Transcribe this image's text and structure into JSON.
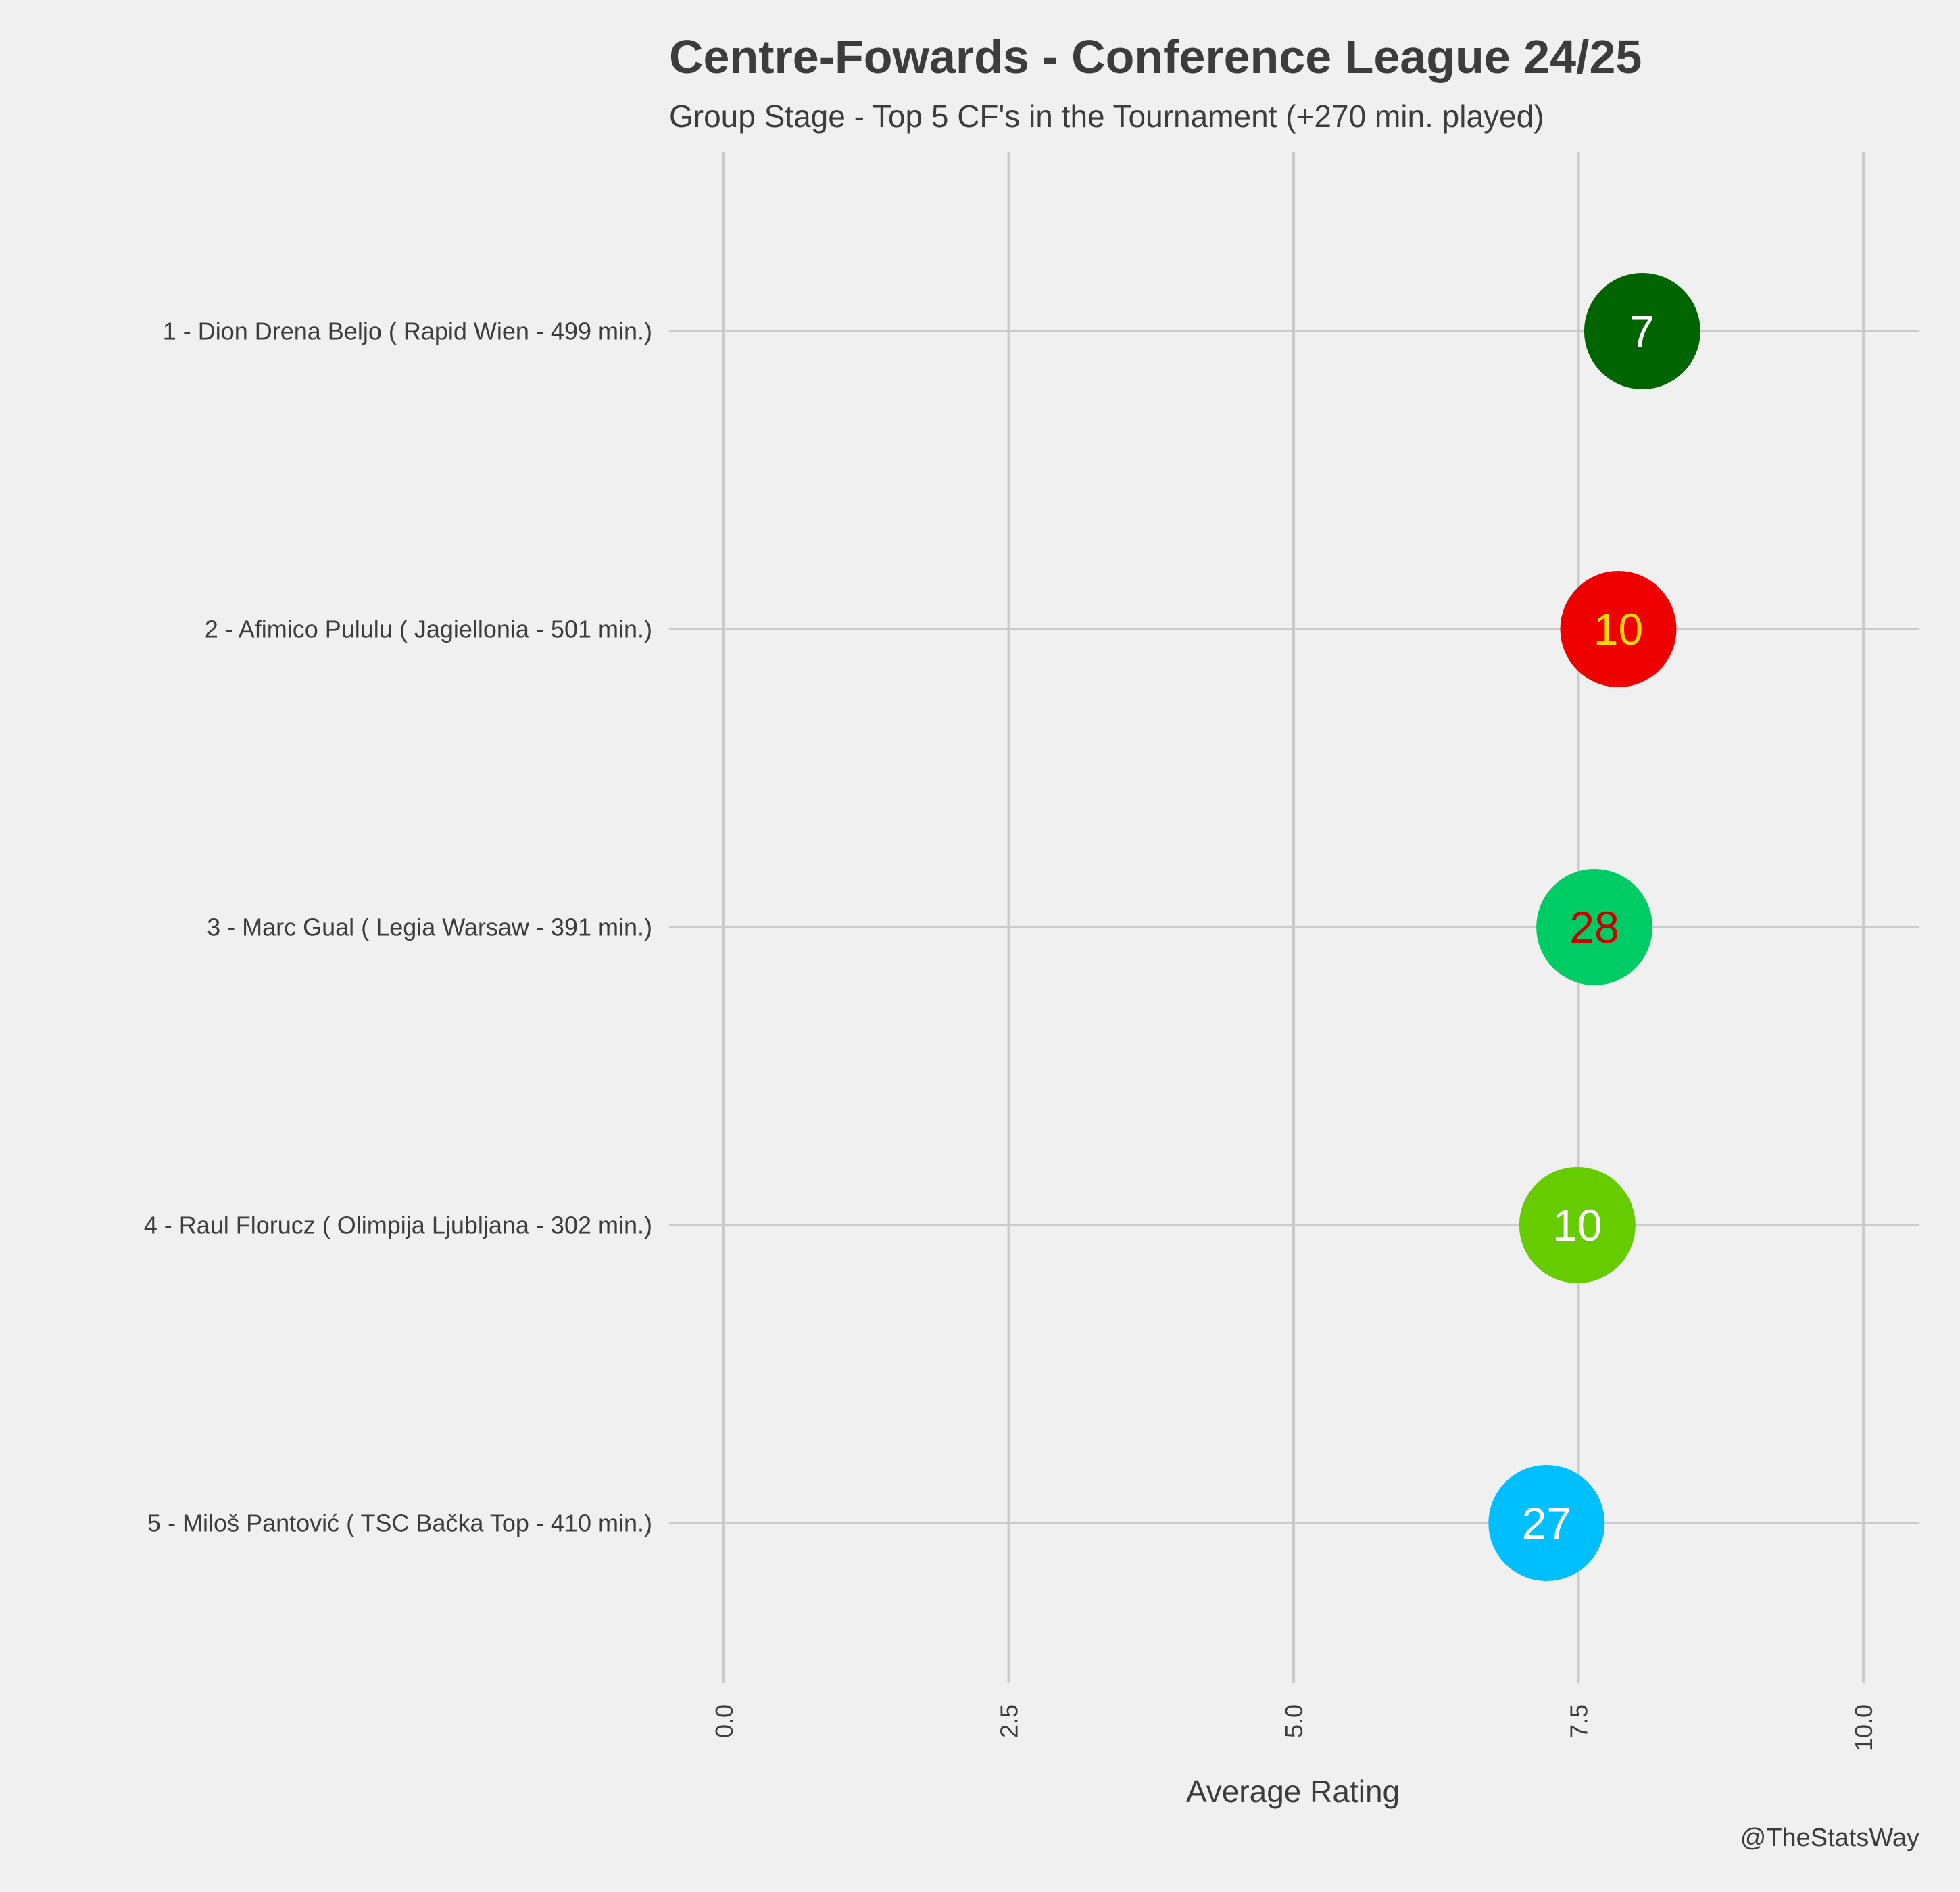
{
  "chart_data": {
    "type": "scatter",
    "title": "Centre-Fowards - Conference League 24/25",
    "subtitle": "Group Stage - Top 5 CF's in the Tournament (+270 min. played)",
    "xlabel": "Average Rating",
    "xlim": [
      -0.3,
      10.5
    ],
    "xticks": [
      "0.0",
      "2.5",
      "5.0",
      "7.5",
      "10.0"
    ],
    "xtick_values": [
      0,
      2.5,
      5,
      7.5,
      10
    ],
    "grid": true,
    "credit": "@TheStatsWay",
    "points": [
      {
        "label": "1 - Dion Drena Beljo  ( Rapid Wien - 499 min.)",
        "rating": 8.06,
        "marker": "7",
        "fill": "#006400",
        "text_color": "#ffffff"
      },
      {
        "label": "2 - Afimico Pululu  ( Jagiellonia - 501 min.)",
        "rating": 7.85,
        "marker": "10",
        "fill": "#ee0000",
        "text_color": "#ffd700"
      },
      {
        "label": "3 - Marc Gual  ( Legia Warsaw - 391 min.)",
        "rating": 7.64,
        "marker": "28",
        "fill": "#00cc66",
        "text_color": "#cc0000"
      },
      {
        "label": "4 - Raul Florucz  ( Olimpija Ljubljana - 302 min.)",
        "rating": 7.49,
        "marker": "10",
        "fill": "#66cc00",
        "text_color": "#ffffff"
      },
      {
        "label": "5 - Miloš Pantović  ( TSC Bačka Top - 410 min.)",
        "rating": 7.22,
        "marker": "27",
        "fill": "#00bfff",
        "text_color": "#ffffff"
      }
    ]
  }
}
